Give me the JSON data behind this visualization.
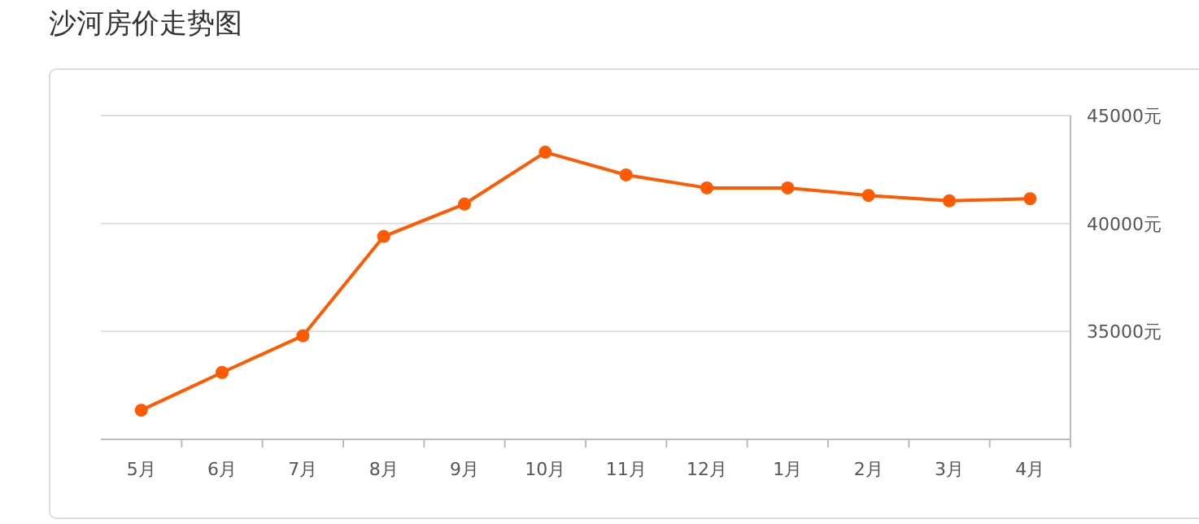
{
  "chart_data": {
    "type": "line",
    "title": "沙河房价走势图",
    "categories": [
      "5月",
      "6月",
      "7月",
      "8月",
      "9月",
      "10月",
      "11月",
      "12月",
      "1月",
      "2月",
      "3月",
      "4月"
    ],
    "series": [
      {
        "color": "#ff5a00",
        "values": [
          31350,
          33100,
          34800,
          39400,
          40900,
          43300,
          42250,
          41650,
          41650,
          41300,
          41050,
          41150
        ]
      }
    ],
    "ylim": [
      30000,
      45000
    ],
    "yticks": [
      {
        "value": 35000,
        "label": "35000元"
      },
      {
        "value": 40000,
        "label": "40000元"
      },
      {
        "value": 45000,
        "label": "45000元"
      }
    ],
    "grid": "y",
    "marker": "circle",
    "line_style": "solid"
  }
}
